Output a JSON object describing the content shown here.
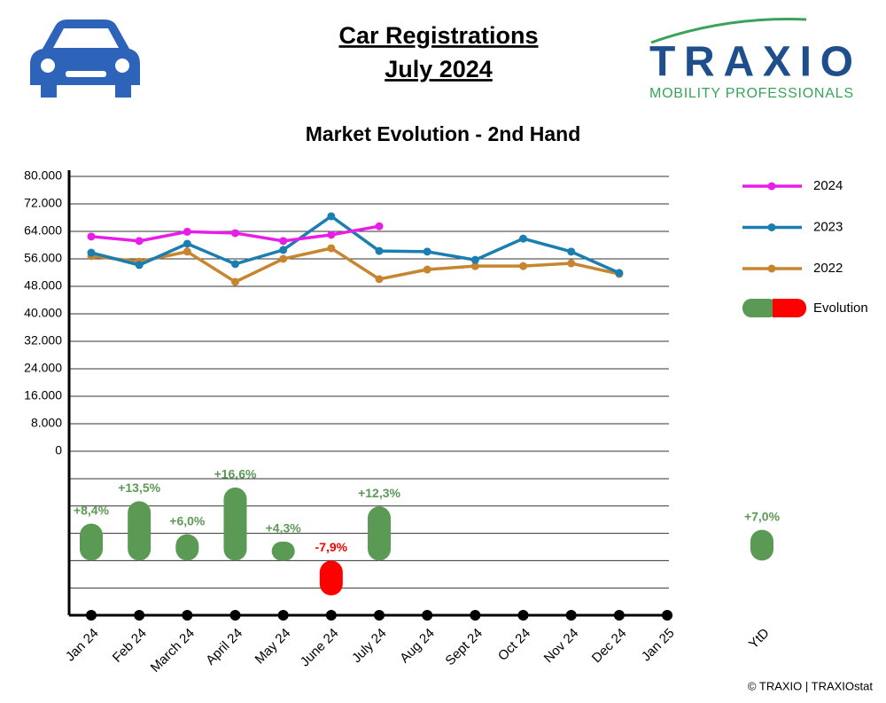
{
  "header": {
    "title": "Car Registrations",
    "subtitle": "July 2024"
  },
  "logo": {
    "name": "TRAXIO",
    "tagline": "MOBILITY PROFESSIONALS"
  },
  "footer": "© TRAXIO | TRAXIOstat",
  "chart_data": {
    "type": "line",
    "title": "Market Evolution - 2nd Hand",
    "categories": [
      "Jan 24",
      "Feb 24",
      "March 24",
      "April 24",
      "May 24",
      "June 24",
      "July 24",
      "Aug 24",
      "Sept 24",
      "Oct 24",
      "Nov 24",
      "Dec 24",
      "Jan 25"
    ],
    "ylim": [
      0,
      80000
    ],
    "yticks": [
      0,
      {
        "value": 8000,
        "label": "8.000"
      },
      {
        "value": 16000,
        "label": "16.000"
      },
      {
        "value": 24000,
        "label": "24.000"
      },
      {
        "value": 32000,
        "label": "32.000"
      },
      {
        "value": 40000,
        "label": "40.000"
      },
      {
        "value": 48000,
        "label": "48.000"
      },
      {
        "value": 56000,
        "label": "56.000"
      },
      {
        "value": 64000,
        "label": "64.000"
      },
      {
        "value": 72000,
        "label": "72.000"
      },
      {
        "value": 80000,
        "label": "80.000"
      }
    ],
    "grid": true,
    "series": [
      {
        "name": "2024",
        "color": "#e81ee8",
        "values": [
          62500,
          61200,
          63900,
          63500,
          61200,
          63000,
          65500,
          null,
          null,
          null,
          null,
          null,
          null
        ]
      },
      {
        "name": "2023",
        "color": "#1a7fb0",
        "values": [
          57800,
          54200,
          60400,
          54500,
          58600,
          68400,
          58300,
          58100,
          55700,
          61900,
          58100,
          51900,
          null
        ]
      },
      {
        "name": "2022",
        "color": "#c8852f",
        "values": [
          56800,
          55200,
          58100,
          49300,
          56000,
          59100,
          50100,
          52900,
          53900,
          53900,
          54700,
          51600,
          null
        ]
      }
    ],
    "evolution": {
      "name": "Evolution",
      "type": "bar",
      "positive_color": "#5b9a55",
      "negative_color": "#ff0000",
      "ylim": [
        -12.4,
        18.6
      ],
      "values": [
        8.4,
        13.5,
        6.0,
        16.6,
        4.3,
        -7.9,
        12.3,
        null,
        null,
        null,
        null,
        null,
        null
      ],
      "value_labels": [
        "+8,4%",
        "+13,5%",
        "+6,0%",
        "+16,6%",
        "+4,3%",
        "-7,9%",
        "+12,3%",
        null,
        null,
        null,
        null,
        null,
        null
      ],
      "ytd": {
        "label": "YtD",
        "value": 7.0,
        "value_label": "+7,0%"
      }
    }
  }
}
